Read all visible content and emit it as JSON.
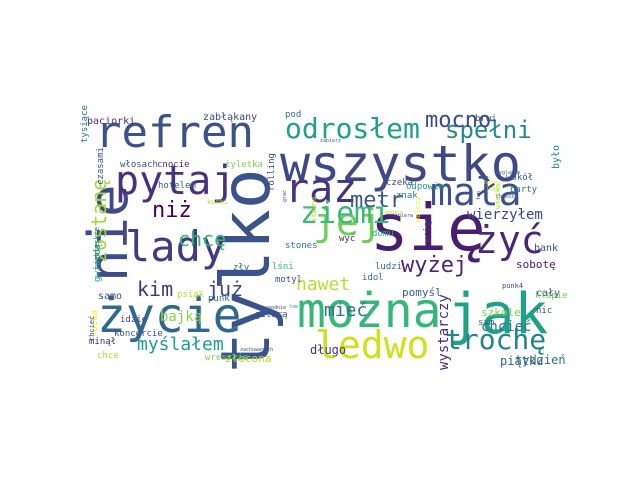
{
  "words": [
    {
      "text": "tylko",
      "color": "#3a538b"
    },
    {
      "text": "wszystko",
      "color": "#3e4989"
    },
    {
      "text": "się",
      "color": "#481f70"
    },
    {
      "text": "jak",
      "color": "#1fa187"
    },
    {
      "text": "można",
      "color": "#35b779"
    },
    {
      "text": "życie",
      "color": "#31688e"
    },
    {
      "text": "refren",
      "color": "#3b528b"
    },
    {
      "text": "nie",
      "color": "#3e4a89"
    },
    {
      "text": "pytaj",
      "color": "#46327e"
    },
    {
      "text": "raz",
      "color": "#46337e"
    },
    {
      "text": "ledwo",
      "color": "#cde11d"
    },
    {
      "text": "lady",
      "color": "#443983"
    },
    {
      "text": "mała",
      "color": "#3b528b"
    },
    {
      "text": "jej",
      "color": "#6ece58"
    },
    {
      "text": "żyć",
      "color": "#482878"
    },
    {
      "text": "odrosłem",
      "color": "#1fa187"
    },
    {
      "text": "ziemi",
      "color": "#3aba76"
    },
    {
      "text": "trochę",
      "color": "#26828e"
    },
    {
      "text": "spełni",
      "color": "#23898e"
    },
    {
      "text": "mocno",
      "color": "#3e4989"
    },
    {
      "text": "metr",
      "color": "#38598c"
    },
    {
      "text": "wyżej",
      "color": "#482475"
    },
    {
      "text": "chcę",
      "color": "#35b779"
    },
    {
      "text": "niż",
      "color": "#440154"
    },
    {
      "text": "zostanę",
      "color": "#9fda3a"
    },
    {
      "text": "już",
      "color": "#3f4788"
    },
    {
      "text": "kim",
      "color": "#453581"
    },
    {
      "text": "nawet",
      "color": "#b5de2b"
    },
    {
      "text": "myślałem",
      "color": "#1f9e89"
    },
    {
      "text": "mieć",
      "color": "#2c718e"
    },
    {
      "text": "wystarczy",
      "color": "#46307e"
    },
    {
      "text": "chcieć",
      "color": "#2a768e"
    },
    {
      "text": "wierzyłem",
      "color": "#3f4788"
    },
    {
      "text": "bajką",
      "color": "#84d44b"
    },
    {
      "text": "cały",
      "color": "#3e4a89"
    },
    {
      "text": "piątku",
      "color": "#35608d"
    },
    {
      "text": "tydzień",
      "color": "#2d708e"
    },
    {
      "text": "długo",
      "color": "#46327e"
    },
    {
      "text": "złocona",
      "color": "#b8de29"
    },
    {
      "text": "szkole",
      "color": "#7ad151"
    },
    {
      "text": "pomyśl",
      "color": "#365c8d"
    },
    {
      "text": "sobotę",
      "color": "#481769"
    },
    {
      "text": "bank",
      "color": "#3b528b"
    },
    {
      "text": "było",
      "color": "#238a8d"
    },
    {
      "text": "brwi",
      "color": "#3e4989"
    },
    {
      "text": "odpowie",
      "color": "#1f9e89"
    },
    {
      "text": "czeka",
      "color": "#3e4a89"
    },
    {
      "text": "znak",
      "color": "#2a788e"
    },
    {
      "text": "domu",
      "color": "#29af7f"
    },
    {
      "text": "wyć",
      "color": "#482677"
    },
    {
      "text": "ludzi",
      "color": "#31688e"
    },
    {
      "text": "idol",
      "color": "#2c728e"
    },
    {
      "text": "lśni",
      "color": "#35b779"
    },
    {
      "text": "motyl",
      "color": "#3b528b"
    },
    {
      "text": "zły",
      "color": "#2c728e"
    },
    {
      "text": "samo",
      "color": "#3e4a89"
    },
    {
      "text": "gwiazdą",
      "color": "#1f9e89"
    },
    {
      "text": "niebieskie",
      "color": "#2a788e"
    },
    {
      "text": "rocka",
      "color": "#fde725"
    },
    {
      "text": "koncercie",
      "color": "#3b528b"
    },
    {
      "text": "chcieć",
      "color": "#38588c"
    },
    {
      "text": "minął",
      "color": "#472c7a"
    },
    {
      "text": "chce",
      "color": "#b5de2b"
    },
    {
      "text": "idzie",
      "color": "#3e4989"
    },
    {
      "text": "nic",
      "color": "#3e4989"
    },
    {
      "text": "klapie",
      "color": "#6ece58"
    },
    {
      "text": "sam",
      "color": "#2c728e"
    },
    {
      "text": "gitarą",
      "color": "#3b528b"
    },
    {
      "text": "wreszcie",
      "color": "#7ad151"
    },
    {
      "text": "psiak",
      "color": "#b5de2b"
    },
    {
      "text": "punk",
      "color": "#31688e"
    },
    {
      "text": "paciorki",
      "color": "#472c7a"
    },
    {
      "text": "zabłąkany",
      "color": "#3e4989"
    },
    {
      "text": "tysiące",
      "color": "#2c728e"
    },
    {
      "text": "czasami",
      "color": "#3b528b"
    },
    {
      "text": "włosach",
      "color": "#3b528b"
    },
    {
      "text": "cnocie",
      "color": "#472d7b"
    },
    {
      "text": "żyletka",
      "color": "#7ad151"
    },
    {
      "text": "hotelem",
      "color": "#35608d"
    },
    {
      "text": "rolling",
      "color": "#3e4a89"
    },
    {
      "text": "stones",
      "color": "#2a788e"
    },
    {
      "text": "kurki",
      "color": "#b5de2b"
    },
    {
      "text": "sławna",
      "color": "#b5de2b"
    },
    {
      "text": "wciąż",
      "color": "#472d7b"
    },
    {
      "text": "walczy",
      "color": "#fde725"
    },
    {
      "text": "wsetka",
      "color": "#b5de2b"
    },
    {
      "text": "punk4",
      "color": "#3e4989"
    },
    {
      "text": "wokół",
      "color": "#3b528b"
    },
    {
      "text": "party",
      "color": "#2a788e"
    },
    {
      "text": "pod",
      "color": "#2c728e"
    },
    {
      "text": "zabierz",
      "color": "#31688e"
    },
    {
      "text": "grać",
      "color": "#3b528b"
    },
    {
      "text": "spodnie",
      "color": "#3e4a89"
    },
    {
      "text": "tam",
      "color": "#35b779"
    },
    {
      "text": "będzie",
      "color": "#b5de2b"
    },
    {
      "text": "ten",
      "color": "#472d7b"
    },
    {
      "text": "najpierw",
      "color": "#3b528b"
    },
    {
      "text": "wyglądam",
      "color": "#31688e"
    },
    {
      "text": "słuchać",
      "color": "#fde725"
    },
    {
      "text": "uczy",
      "color": "#b5de2b"
    },
    {
      "text": "chcesz",
      "color": "#3e4989"
    },
    {
      "text": "zachowanych",
      "color": "#3b528b"
    }
  ]
}
